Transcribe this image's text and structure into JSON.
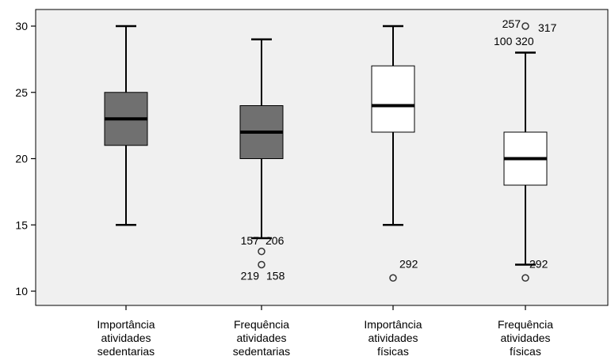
{
  "chart_data": {
    "type": "boxplot",
    "title": "",
    "xlabel": "",
    "ylabel": "",
    "ylim": [
      9.5,
      31
    ],
    "yticks": [
      10,
      15,
      20,
      25,
      30
    ],
    "grid": false,
    "legend": "none",
    "categories": [
      [
        "Importância",
        "atividades",
        "sedentarias"
      ],
      [
        "Frequência",
        "atividades",
        "sedentarias"
      ],
      [
        "Importância",
        "atividades",
        "físicas"
      ],
      [
        "Frequência",
        "atividades",
        "físicas"
      ]
    ],
    "boxes": [
      {
        "whisker_low": 15,
        "q1": 21,
        "median": 23,
        "q3": 25,
        "whisker_high": 30,
        "color": "#707070",
        "outliers": []
      },
      {
        "whisker_low": 14,
        "q1": 20,
        "median": 22,
        "q3": 24,
        "whisker_high": 29,
        "color": "#707070",
        "outliers": [
          {
            "value": 13,
            "labels": [
              "157",
              "206"
            ]
          },
          {
            "value": 12,
            "labels": [
              "219",
              "158"
            ]
          }
        ]
      },
      {
        "whisker_low": 15,
        "q1": 22,
        "median": 24,
        "q3": 27,
        "whisker_high": 30,
        "color": "#ffffff",
        "outliers": [
          {
            "value": 11,
            "labels": [
              "292"
            ]
          }
        ]
      },
      {
        "whisker_low": 12,
        "q1": 18,
        "median": 20,
        "q3": 22,
        "whisker_high": 28,
        "color": "#ffffff",
        "outliers": [
          {
            "value": 30,
            "labels": [
              "257",
              "317",
              "100 320"
            ]
          },
          {
            "value": 11,
            "labels": [
              "292"
            ]
          }
        ]
      }
    ]
  },
  "colors": {
    "plot_background": "#f0f0f0",
    "axis": "#000000"
  }
}
